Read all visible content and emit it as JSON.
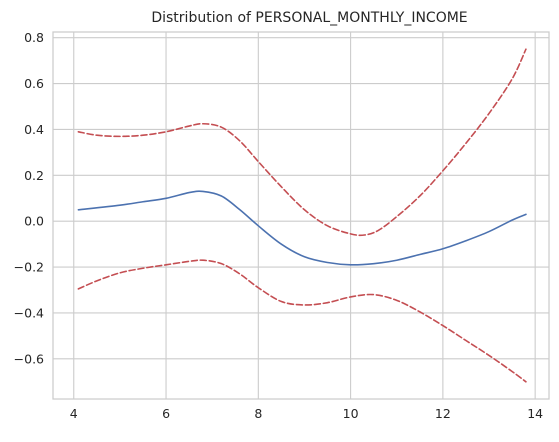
{
  "chart_data": {
    "type": "line",
    "title": "Distribution of PERSONAL_MONTHLY_INCOME",
    "xlabel": "",
    "ylabel": "",
    "xlim": [
      3.55,
      14.3
    ],
    "ylim": [
      -0.775,
      0.825
    ],
    "xticks": [
      4,
      6,
      8,
      10,
      12,
      14
    ],
    "xtick_labels": [
      "4",
      "6",
      "8",
      "10",
      "12",
      "14"
    ],
    "yticks": [
      -0.6,
      -0.4,
      -0.2,
      0.0,
      0.2,
      0.4,
      0.6,
      0.8
    ],
    "ytick_labels": [
      "−0.6",
      "−0.4",
      "−0.2",
      "0.0",
      "0.2",
      "0.4",
      "0.6",
      "0.8"
    ],
    "grid": true,
    "legend": "none",
    "series": [
      {
        "role": "estimate",
        "color": "#4c72b0",
        "style": "solid",
        "x": [
          4.1,
          5.0,
          5.5,
          6.0,
          6.5,
          6.8,
          7.2,
          7.6,
          8.0,
          8.5,
          9.0,
          9.5,
          10.0,
          10.5,
          11.0,
          11.5,
          12.0,
          12.5,
          13.0,
          13.5,
          13.8
        ],
        "y": [
          0.05,
          0.07,
          0.085,
          0.1,
          0.125,
          0.13,
          0.11,
          0.05,
          -0.02,
          -0.1,
          -0.155,
          -0.18,
          -0.19,
          -0.185,
          -0.17,
          -0.145,
          -0.12,
          -0.085,
          -0.045,
          0.005,
          0.03
        ]
      },
      {
        "role": "upper-bound",
        "color": "#c44e52",
        "style": "dashed",
        "x": [
          4.1,
          4.5,
          5.0,
          5.5,
          6.0,
          6.5,
          6.8,
          7.2,
          7.6,
          8.0,
          8.5,
          9.0,
          9.5,
          10.0,
          10.3,
          10.6,
          11.0,
          11.5,
          12.0,
          12.5,
          13.0,
          13.5,
          13.8
        ],
        "y": [
          0.39,
          0.375,
          0.37,
          0.375,
          0.39,
          0.415,
          0.425,
          0.41,
          0.35,
          0.26,
          0.15,
          0.05,
          -0.02,
          -0.055,
          -0.06,
          -0.04,
          0.02,
          0.11,
          0.22,
          0.34,
          0.47,
          0.62,
          0.75
        ]
      },
      {
        "role": "lower-bound",
        "color": "#c44e52",
        "style": "dashed",
        "x": [
          4.1,
          4.5,
          5.0,
          5.5,
          6.0,
          6.5,
          6.8,
          7.2,
          7.6,
          8.0,
          8.5,
          9.0,
          9.5,
          10.0,
          10.5,
          11.0,
          11.5,
          12.0,
          12.5,
          13.0,
          13.5,
          13.8
        ],
        "y": [
          -0.295,
          -0.26,
          -0.225,
          -0.205,
          -0.19,
          -0.175,
          -0.17,
          -0.185,
          -0.23,
          -0.29,
          -0.35,
          -0.365,
          -0.355,
          -0.33,
          -0.32,
          -0.345,
          -0.395,
          -0.455,
          -0.52,
          -0.585,
          -0.655,
          -0.7
        ]
      }
    ]
  },
  "colors": {
    "background": "#ffffff",
    "grid": "#cccccc",
    "spine": "#cccccc",
    "text": "#262626"
  }
}
